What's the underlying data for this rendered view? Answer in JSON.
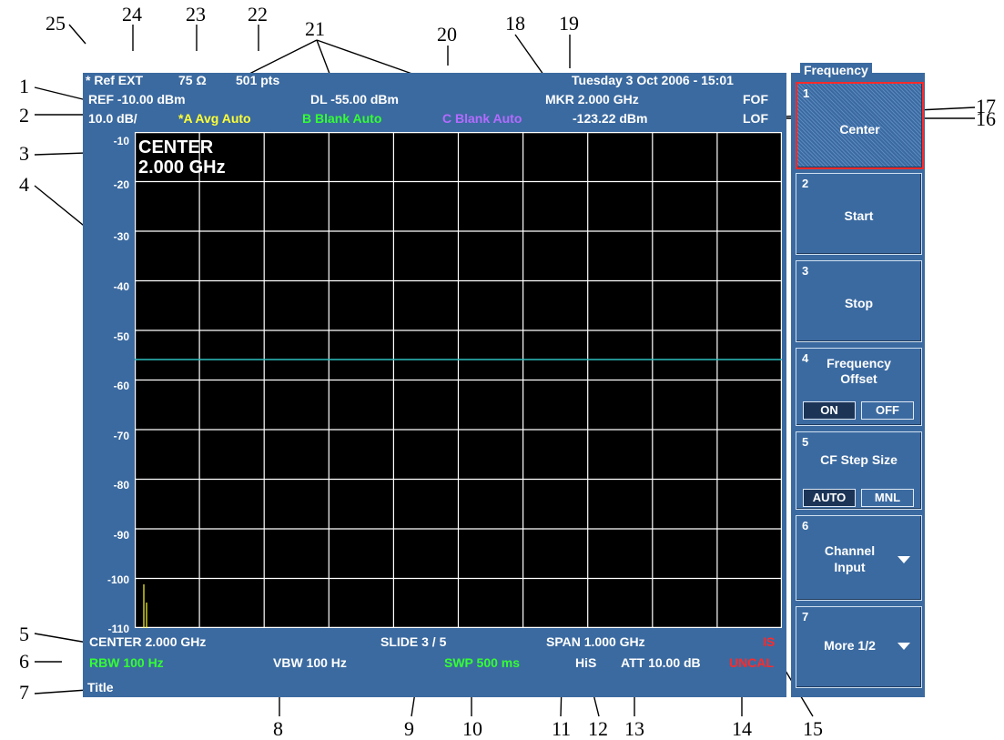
{
  "header": {
    "ref_ext": "* Ref EXT",
    "impedance": "75 Ω",
    "points": "501 pts",
    "datetime": "Tuesday 3 Oct 2006 - 15:01",
    "ref_level": "REF  -10.00 dBm",
    "display_line": "DL   -55.00 dBm",
    "marker_freq": "MKR 2.000 GHz",
    "fof": "FOF",
    "scale": "10.0 dB/",
    "trace_a": "*A Avg Auto",
    "trace_b": "B Blank Auto",
    "trace_c": "C Blank Auto",
    "marker_level": "-123.22 dBm",
    "lof": "LOF"
  },
  "plot": {
    "center_label": "CENTER",
    "center_value": "2.000 GHz",
    "y_ticks": [
      "-10",
      "-20",
      "-30",
      "-40",
      "-50",
      "-60",
      "-70",
      "-80",
      "-90",
      "-100",
      "-110"
    ],
    "display_line_color": "#2fbfbf",
    "trace_color": "#ffff33"
  },
  "footer": {
    "center": "CENTER 2.000 GHz",
    "slide": "SLIDE 3 / 5",
    "span": "SPAN 1.000 GHz",
    "is": "IS",
    "rbw": "RBW 100 Hz",
    "vbw": "VBW 100 Hz",
    "swp": "SWP  500 ms",
    "his": "HiS",
    "att": "ATT 10.00 dB",
    "uncal": "UNCAL",
    "title": "Title"
  },
  "softkeys": {
    "menu_title": "Frequency",
    "keys": [
      {
        "num": "1",
        "label": "Center"
      },
      {
        "num": "2",
        "label": "Start"
      },
      {
        "num": "3",
        "label": "Stop"
      },
      {
        "num": "4",
        "label_line1": "Frequency",
        "label_line2": "Offset",
        "opt1": "ON",
        "opt2": "OFF"
      },
      {
        "num": "5",
        "label": "CF Step Size",
        "opt1": "AUTO",
        "opt2": "MNL"
      },
      {
        "num": "6",
        "label_line1": "Channel",
        "label_line2": "Input"
      },
      {
        "num": "7",
        "label": "More 1/2"
      }
    ]
  },
  "callouts": [
    "1",
    "2",
    "3",
    "4",
    "5",
    "6",
    "7",
    "8",
    "9",
    "10",
    "11",
    "12",
    "13",
    "14",
    "15",
    "16",
    "17",
    "18",
    "19",
    "20",
    "21",
    "22",
    "23",
    "24",
    "25"
  ],
  "colors": {
    "screen_bg": "#3b6aa0",
    "plot_bg": "#000000",
    "yellow": "#ffff33",
    "green": "#33ff33",
    "purple": "#b46bff",
    "red": "#ff2a2a"
  }
}
